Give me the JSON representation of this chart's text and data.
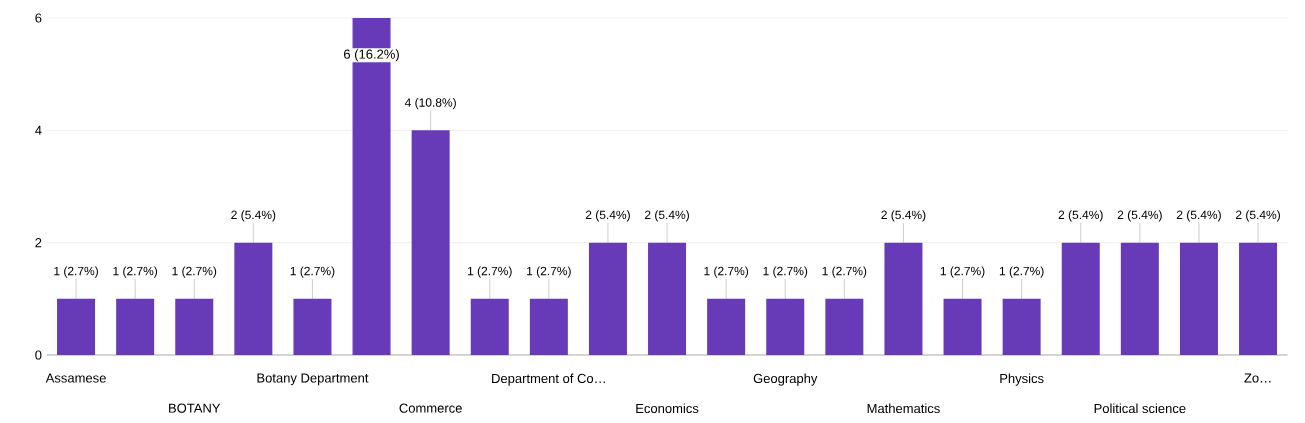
{
  "chart_data": {
    "type": "bar",
    "categories": [
      "Assamese",
      null,
      "BOTANY",
      null,
      "Botany Department",
      null,
      "Commerce",
      null,
      "Department of Co…",
      null,
      "Economics",
      null,
      "Geography",
      null,
      "Mathematics",
      null,
      "Physics",
      null,
      "Political science",
      null,
      "Zo…"
    ],
    "values": [
      1,
      1,
      1,
      2,
      1,
      6,
      4,
      1,
      1,
      2,
      2,
      1,
      1,
      1,
      2,
      1,
      1,
      2,
      2,
      2,
      2
    ],
    "value_labels": [
      "1 (2.7%)",
      "1 (2.7%)",
      "1 (2.7%)",
      "2 (5.4%)",
      "1 (2.7%)",
      "6 (16.2%)",
      "4 (10.8%)",
      "1 (2.7%)",
      "1 (2.7%)",
      "2 (5.4%)",
      "2 (5.4%)",
      "1 (2.7%)",
      "1 (2.7%)",
      "1 (2.7%)",
      "2 (5.4%)",
      "1 (2.7%)",
      "1 (2.7%)",
      "2 (5.4%)",
      "2 (5.4%)",
      "2 (5.4%)",
      "2 (5.4%)"
    ],
    "color": "#673ab7",
    "ylim": [
      0,
      6
    ],
    "yticks": [
      0,
      2,
      4,
      6
    ],
    "grid": "y"
  }
}
